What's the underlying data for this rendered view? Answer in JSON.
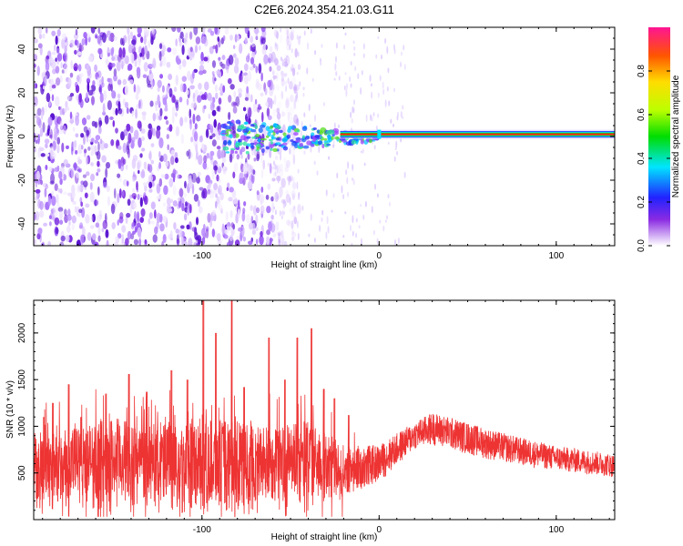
{
  "title": "C2E6.2024.354.21.03.G11",
  "chart_data": [
    {
      "type": "heatmap",
      "xlabel": "Height of straight line (km)",
      "ylabel": "Frequency (Hz)",
      "xlim": [
        -195,
        133
      ],
      "ylim": [
        -50,
        50
      ],
      "xticks": [
        -100,
        0,
        100
      ],
      "yticks": [
        -40,
        -20,
        0,
        20,
        40
      ],
      "colorbar": {
        "label": "Normalized spectral amplitude",
        "range": [
          0.0,
          1.0
        ],
        "ticks": [
          0.0,
          0.2,
          0.4,
          0.6,
          0.8
        ]
      },
      "signal_line_hz": 1,
      "noise_region_km": [
        -195,
        -60
      ]
    },
    {
      "type": "line",
      "xlabel": "Height of straight line (km)",
      "ylabel": "SNR (10 * v/v)",
      "xlim": [
        -195,
        133
      ],
      "ylim": [
        0,
        2350
      ],
      "xticks": [
        -100,
        0,
        100
      ],
      "yticks": [
        500,
        1000,
        1500,
        2000
      ],
      "color": "#ee3333",
      "envelope": {
        "x": [
          -195,
          -170,
          -150,
          -130,
          -100,
          -80,
          -60,
          -40,
          -20,
          0,
          20,
          30,
          40,
          60,
          80,
          100,
          120,
          133
        ],
        "low": [
          200,
          200,
          180,
          180,
          150,
          150,
          180,
          200,
          250,
          400,
          750,
          800,
          750,
          650,
          580,
          520,
          480,
          450
        ],
        "high": [
          900,
          1000,
          1100,
          1000,
          1100,
          1050,
          1000,
          1050,
          800,
          800,
          1050,
          1150,
          1100,
          980,
          880,
          790,
          740,
          700
        ]
      },
      "spikes": [
        {
          "x": -189,
          "y": 1100
        },
        {
          "x": -184,
          "y": 1250
        },
        {
          "x": -175,
          "y": 1450
        },
        {
          "x": -168,
          "y": 1100
        },
        {
          "x": -154,
          "y": 1350
        },
        {
          "x": -141,
          "y": 1560
        },
        {
          "x": -131,
          "y": 1370
        },
        {
          "x": -117,
          "y": 1600
        },
        {
          "x": -108,
          "y": 1500
        },
        {
          "x": -99,
          "y": 2350
        },
        {
          "x": -92,
          "y": 2000
        },
        {
          "x": -83,
          "y": 2350
        },
        {
          "x": -76,
          "y": 1420
        },
        {
          "x": -62,
          "y": 1950
        },
        {
          "x": -53,
          "y": 1500
        },
        {
          "x": -46,
          "y": 1950
        },
        {
          "x": -38,
          "y": 2050
        },
        {
          "x": -31,
          "y": 1400
        },
        {
          "x": -25,
          "y": 1300
        },
        {
          "x": -17,
          "y": 1120
        }
      ]
    }
  ]
}
